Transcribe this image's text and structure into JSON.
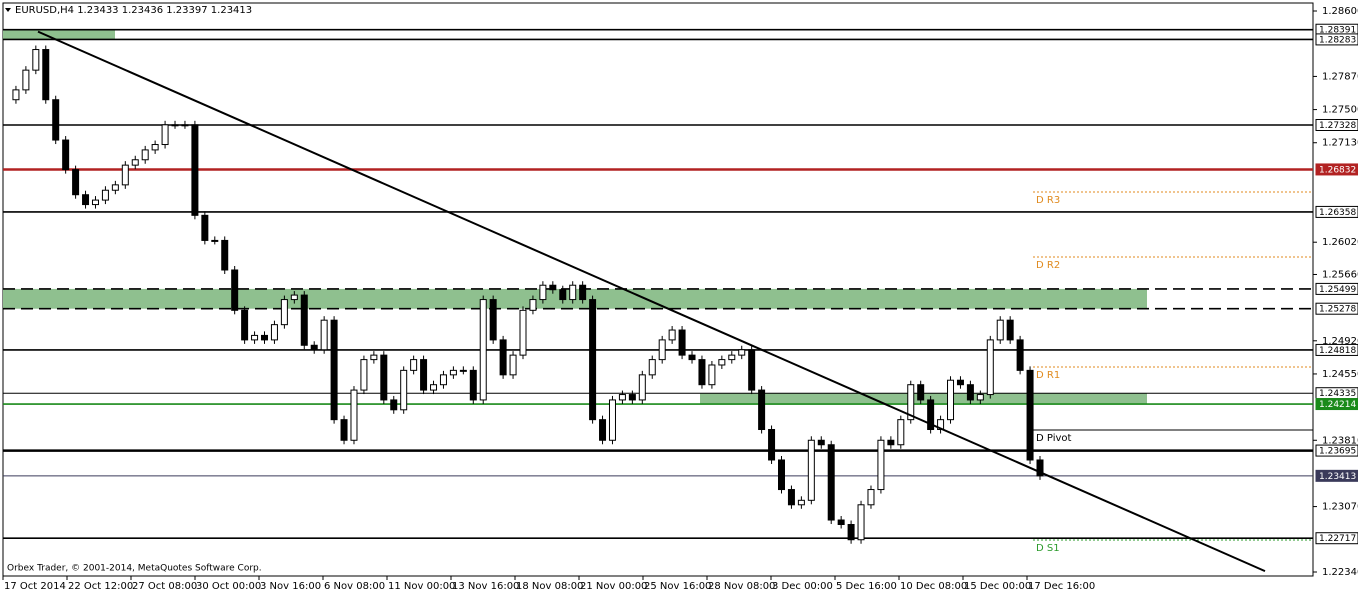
{
  "header": "EURUSD,H4  1.23433 1.23436 1.23397 1.23413",
  "copyright": "Orbex Trader, © 2001-2014, MetaQuotes Software Corp.",
  "price_axis": {
    "ylim": [
      1.2234,
      1.286
    ],
    "ticks": [
      {
        "value": 1.286,
        "label": "1.28600"
      },
      {
        "value": 1.2787,
        "label": "1.27870"
      },
      {
        "value": 1.275,
        "label": "1.27500"
      },
      {
        "value": 1.2713,
        "label": "1.27130"
      },
      {
        "value": 1.2602,
        "label": "1.26020"
      },
      {
        "value": 1.2566,
        "label": "1.25660"
      },
      {
        "value": 1.2492,
        "label": "1.24920"
      },
      {
        "value": 1.2455,
        "label": "1.24550"
      },
      {
        "value": 1.2381,
        "label": "1.23810"
      },
      {
        "value": 1.2307,
        "label": "1.23070"
      },
      {
        "value": 1.2234,
        "label": "1.22340"
      }
    ]
  },
  "levels": [
    {
      "value": 1.28391,
      "color": "#000000",
      "style": "solid"
    },
    {
      "value": 1.28283,
      "color": "#000000",
      "style": "solid"
    },
    {
      "value": 1.27328,
      "color": "#000000",
      "style": "solid"
    },
    {
      "value": 1.26832,
      "color": "#b22222",
      "style": "solid"
    },
    {
      "value": 1.26358,
      "color": "#000000",
      "style": "solid"
    },
    {
      "value": 1.25499,
      "color": "#000000",
      "style": "dashed"
    },
    {
      "value": 1.25278,
      "color": "#000000",
      "style": "dashed"
    },
    {
      "value": 1.24818,
      "color": "#000000",
      "style": "solid"
    },
    {
      "value": 1.24335,
      "color": "#000000",
      "style": "thin"
    },
    {
      "value": 1.24214,
      "color": "#1a8a1a",
      "style": "solid"
    },
    {
      "value": 1.23695,
      "color": "#000000",
      "style": "thick"
    },
    {
      "value": 1.23413,
      "color": "#3a3a5a",
      "style": "thin"
    },
    {
      "value": 1.22717,
      "color": "#000000",
      "style": "solid"
    }
  ],
  "zones": [
    {
      "high": 1.28391,
      "low": 1.28283
    },
    {
      "high": 1.25499,
      "low": 1.25278
    },
    {
      "high": 1.24335,
      "low": 1.24214
    }
  ],
  "pivots": [
    {
      "name": "D R3",
      "value": 1.2658,
      "color": "#e08a1e"
    },
    {
      "name": "D R2",
      "value": 1.25855,
      "color": "#e08a1e"
    },
    {
      "name": "D R1",
      "value": 1.24628,
      "color": "#e08a1e"
    },
    {
      "name": "D Pivot",
      "value": 1.23925,
      "color": "#000000"
    },
    {
      "name": "D S1",
      "value": 1.22697,
      "color": "#2a9a2a"
    }
  ],
  "trendline": {
    "start": 1.2837,
    "end": 1.2235
  },
  "time_axis": [
    "17 Oct 2014",
    "22 Oct 12:00",
    "27 Oct 08:00",
    "30 Oct 00:00",
    "3 Nov 16:00",
    "6 Nov 08:00",
    "11 Nov 00:00",
    "13 Nov 16:00",
    "18 Nov 08:00",
    "21 Nov 00:00",
    "25 Nov 16:00",
    "28 Nov 08:00",
    "3 Dec 00:00",
    "5 Dec 16:00",
    "10 Dec 08:00",
    "15 Dec 00:00",
    "17 Dec 16:00"
  ],
  "closes": [
    1.2761,
    1.2772,
    1.2794,
    1.2817,
    1.2761,
    1.2716,
    1.2683,
    1.2655,
    1.2644,
    1.2649,
    1.266,
    1.2666,
    1.2688,
    1.2694,
    1.2705,
    1.2711,
    1.2733,
    1.2733,
    1.2733,
    1.2632,
    1.2604,
    1.2604,
    1.2571,
    1.2526,
    1.2493,
    1.2498,
    1.2493,
    1.251,
    1.2538,
    1.2543,
    1.2487,
    1.2482,
    1.2515,
    1.2404,
    1.2381,
    1.2437,
    1.2471,
    1.2476,
    1.2426,
    1.2415,
    1.2459,
    1.2471,
    1.2437,
    1.2443,
    1.2454,
    1.2459,
    1.2459,
    1.2426,
    1.2538,
    1.2493,
    1.2454,
    1.2476,
    1.2526,
    1.2538,
    1.2554,
    1.2549,
    1.2538,
    1.2554,
    1.2538,
    1.2404,
    1.2381,
    1.2426,
    1.2432,
    1.2426,
    1.2454,
    1.2471,
    1.2493,
    1.2504,
    1.2476,
    1.2471,
    1.2443,
    1.2465,
    1.2471,
    1.2476,
    1.2482,
    1.2437,
    1.2393,
    1.2359,
    1.2326,
    1.2309,
    1.2314,
    1.2381,
    1.2376,
    1.2292,
    1.2287,
    1.227,
    1.2309,
    1.2326,
    1.2381,
    1.2376,
    1.2404,
    1.2443,
    1.2426,
    1.2393,
    1.2404,
    1.2448,
    1.2443,
    1.2426,
    1.2432,
    1.2493,
    1.2515,
    1.2493,
    1.2459,
    1.2359,
    1.23413
  ]
}
